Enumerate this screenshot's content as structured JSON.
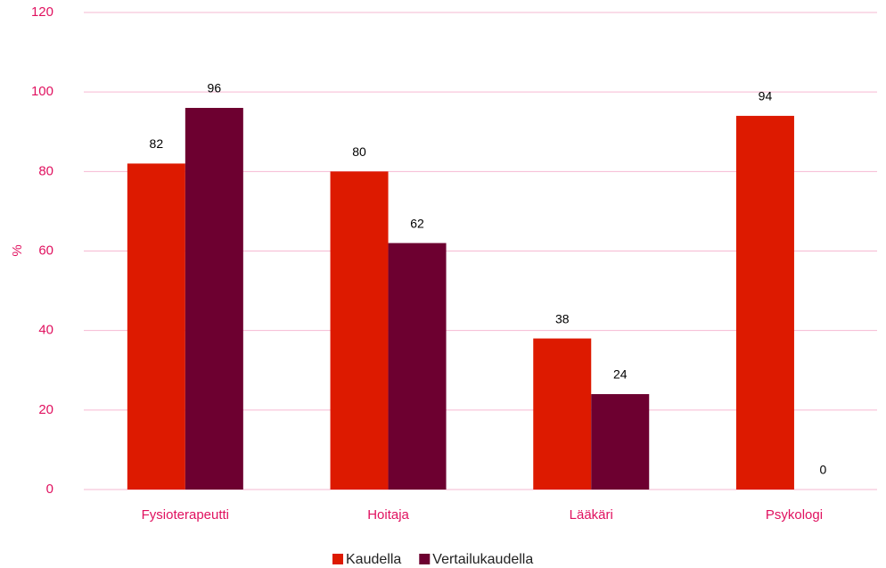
{
  "chart_data": {
    "type": "bar",
    "y_label": "%",
    "categories": [
      "Fysioterapeutti",
      "Hoitaja",
      "Lääkäri",
      "Psykologi"
    ],
    "series": [
      {
        "name": "Kaudella",
        "color": "#dd1a00",
        "values": [
          82,
          80,
          38,
          94
        ]
      },
      {
        "name": "Vertailukaudella",
        "color": "#6d0030",
        "values": [
          96,
          62,
          24,
          0
        ]
      }
    ],
    "ylim": [
      0,
      120
    ],
    "yticks": [
      0,
      20,
      40,
      60,
      80,
      100,
      120
    ],
    "grid": true,
    "legend": "bottom"
  }
}
